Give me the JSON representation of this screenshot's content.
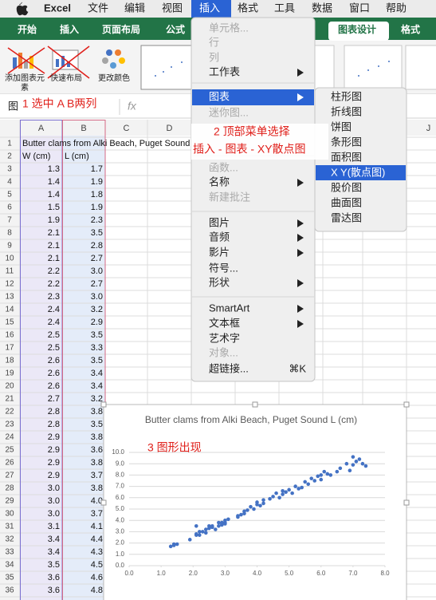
{
  "menubar": {
    "items": [
      {
        "label": "Excel",
        "bold": true
      },
      {
        "label": "文件"
      },
      {
        "label": "编辑"
      },
      {
        "label": "视图"
      },
      {
        "label": "插入",
        "active": true
      },
      {
        "label": "格式"
      },
      {
        "label": "工具"
      },
      {
        "label": "数据"
      },
      {
        "label": "窗口"
      },
      {
        "label": "帮助"
      }
    ]
  },
  "ribbon": {
    "tabs": [
      {
        "label": "开始"
      },
      {
        "label": "插入"
      },
      {
        "label": "页面布局"
      },
      {
        "label": "公式"
      },
      {
        "label": "图表设计",
        "active": true
      },
      {
        "label": "格式"
      }
    ],
    "buttons": [
      "添加图表元素",
      "快速布局",
      "更改颜色"
    ]
  },
  "formula_bar": {
    "name_box": "图",
    "fx": "fx"
  },
  "sheet": {
    "columns": [
      "A",
      "B",
      "C",
      "D",
      "E",
      "F",
      "G",
      "H",
      "I",
      "J"
    ],
    "rows": [
      {
        "num": 1,
        "cells": [
          "Butter clams from Alki Beach, Puget Sound"
        ]
      },
      {
        "num": 2,
        "cells": [
          "W (cm)",
          "L (cm)"
        ]
      },
      {
        "num": 3,
        "cells": [
          "1.3",
          "1.7"
        ]
      },
      {
        "num": 4,
        "cells": [
          "1.4",
          "1.9"
        ]
      },
      {
        "num": 5,
        "cells": [
          "1.4",
          "1.8"
        ]
      },
      {
        "num": 6,
        "cells": [
          "1.5",
          "1.9"
        ]
      },
      {
        "num": 7,
        "cells": [
          "1.9",
          "2.3"
        ]
      },
      {
        "num": 8,
        "cells": [
          "2.1",
          "3.5"
        ]
      },
      {
        "num": 9,
        "cells": [
          "2.1",
          "2.8"
        ]
      },
      {
        "num": 10,
        "cells": [
          "2.1",
          "2.7"
        ]
      },
      {
        "num": 11,
        "cells": [
          "2.2",
          "3.0"
        ]
      },
      {
        "num": 12,
        "cells": [
          "2.2",
          "2.7"
        ]
      },
      {
        "num": 13,
        "cells": [
          "2.3",
          "3.0"
        ]
      },
      {
        "num": 14,
        "cells": [
          "2.4",
          "3.2"
        ]
      },
      {
        "num": 15,
        "cells": [
          "2.4",
          "2.9"
        ]
      },
      {
        "num": 16,
        "cells": [
          "2.5",
          "3.5"
        ]
      },
      {
        "num": 17,
        "cells": [
          "2.5",
          "3.3"
        ]
      },
      {
        "num": 18,
        "cells": [
          "2.6",
          "3.5"
        ]
      },
      {
        "num": 19,
        "cells": [
          "2.6",
          "3.4"
        ]
      },
      {
        "num": 20,
        "cells": [
          "2.6",
          "3.4"
        ]
      },
      {
        "num": 21,
        "cells": [
          "2.7",
          "3.2"
        ]
      },
      {
        "num": 22,
        "cells": [
          "2.8",
          "3.8"
        ]
      },
      {
        "num": 23,
        "cells": [
          "2.8",
          "3.5"
        ]
      },
      {
        "num": 24,
        "cells": [
          "2.9",
          "3.8"
        ]
      },
      {
        "num": 25,
        "cells": [
          "2.9",
          "3.6"
        ]
      },
      {
        "num": 26,
        "cells": [
          "2.9",
          "3.8"
        ]
      },
      {
        "num": 27,
        "cells": [
          "2.9",
          "3.7"
        ]
      },
      {
        "num": 28,
        "cells": [
          "3.0",
          "3.8"
        ]
      },
      {
        "num": 29,
        "cells": [
          "3.0",
          "4.0"
        ]
      },
      {
        "num": 30,
        "cells": [
          "3.0",
          "3.7"
        ]
      },
      {
        "num": 31,
        "cells": [
          "3.1",
          "4.1"
        ]
      },
      {
        "num": 32,
        "cells": [
          "3.4",
          "4.4"
        ]
      },
      {
        "num": 33,
        "cells": [
          "3.4",
          "4.3"
        ]
      },
      {
        "num": 34,
        "cells": [
          "3.5",
          "4.5"
        ]
      },
      {
        "num": 35,
        "cells": [
          "3.6",
          "4.6"
        ]
      },
      {
        "num": 36,
        "cells": [
          "3.6",
          "4.8"
        ]
      }
    ]
  },
  "insert_menu": {
    "items": [
      {
        "label": "单元格...",
        "disabled": true
      },
      {
        "label": "行",
        "disabled": true
      },
      {
        "label": "列",
        "disabled": true
      },
      {
        "label": "工作表",
        "submenu": true
      },
      {
        "label": "图表",
        "submenu": true,
        "highlighted": true
      },
      {
        "label": "迷你图...",
        "disabled": true
      },
      {
        "label": "函数...",
        "disabled": true
      },
      {
        "label": "名称",
        "submenu": true
      },
      {
        "label": "新建批注",
        "disabled": true
      },
      {
        "label": "图片",
        "submenu": true
      },
      {
        "label": "音频",
        "submenu": true
      },
      {
        "label": "影片",
        "submenu": true
      },
      {
        "label": "符号..."
      },
      {
        "label": "形状",
        "submenu": true
      },
      {
        "label": "SmartArt",
        "submenu": true
      },
      {
        "label": "文本框",
        "submenu": true
      },
      {
        "label": "艺术字"
      },
      {
        "label": "对象...",
        "disabled": true
      },
      {
        "label": "超链接...",
        "shortcut": "⌘K"
      }
    ]
  },
  "chart_submenu": {
    "items": [
      {
        "label": "柱形图"
      },
      {
        "label": "折线图"
      },
      {
        "label": "饼图"
      },
      {
        "label": "条形图"
      },
      {
        "label": "面积图"
      },
      {
        "label": "X Y(散点图)",
        "highlighted": true
      },
      {
        "label": "股价图"
      },
      {
        "label": "曲面图"
      },
      {
        "label": "雷达图"
      }
    ]
  },
  "annotations": [
    "1 选中 A B两列",
    "2 顶部菜单选择",
    "插入 - 图表 - XY散点图",
    "3 图形出现"
  ],
  "chart_data": {
    "type": "scatter",
    "title": "Butter clams from Alki Beach, Puget Sound L (cm)",
    "color": "#4472c4",
    "grid": true,
    "x": [
      1.3,
      1.4,
      1.4,
      1.5,
      1.9,
      2.1,
      2.1,
      2.1,
      2.2,
      2.2,
      2.3,
      2.4,
      2.4,
      2.5,
      2.5,
      2.6,
      2.6,
      2.6,
      2.7,
      2.8,
      2.8,
      2.9,
      2.9,
      2.9,
      2.9,
      3.0,
      3.0,
      3.0,
      3.1,
      3.4,
      3.4,
      3.5,
      3.6,
      3.6,
      3.7,
      3.8,
      3.9,
      4.0,
      4.0,
      4.1,
      4.2,
      4.2,
      4.4,
      4.5,
      4.6,
      4.7,
      4.8,
      4.8,
      4.9,
      5.0,
      5.1,
      5.2,
      5.3,
      5.4,
      5.5,
      5.6,
      5.7,
      5.8,
      5.9,
      6.0,
      6.0,
      6.1,
      6.2,
      6.3,
      6.5,
      6.6,
      6.8,
      6.9,
      7.0,
      7.0,
      7.1,
      7.2,
      7.3,
      7.4
    ],
    "values": [
      1.7,
      1.9,
      1.8,
      1.9,
      2.3,
      3.5,
      2.8,
      2.7,
      3.0,
      2.7,
      3.0,
      3.2,
      2.9,
      3.5,
      3.3,
      3.5,
      3.4,
      3.4,
      3.2,
      3.8,
      3.5,
      3.8,
      3.6,
      3.8,
      3.7,
      3.8,
      4.0,
      3.7,
      4.1,
      4.4,
      4.3,
      4.5,
      4.6,
      4.8,
      4.9,
      5.2,
      5.0,
      5.4,
      5.6,
      5.3,
      5.5,
      5.8,
      5.9,
      6.1,
      6.4,
      6.0,
      6.3,
      6.6,
      6.5,
      6.7,
      6.4,
      7.0,
      6.8,
      6.9,
      7.4,
      7.2,
      7.7,
      7.5,
      7.9,
      8.0,
      7.6,
      8.3,
      8.1,
      8.0,
      8.3,
      8.6,
      9.0,
      8.4,
      9.6,
      8.9,
      9.2,
      9.4,
      9.0,
      8.8
    ],
    "xlim": [
      0,
      8
    ],
    "xticks": [
      {
        "value": 0,
        "label": "0.0"
      },
      {
        "value": 1,
        "label": "1.0"
      },
      {
        "value": 2,
        "label": "2.0"
      },
      {
        "value": 3,
        "label": "3.0"
      },
      {
        "value": 4,
        "label": "4.0"
      },
      {
        "value": 5,
        "label": "5.0"
      },
      {
        "value": 6,
        "label": "6.0"
      },
      {
        "value": 7,
        "label": "7.0"
      },
      {
        "value": 8,
        "label": "8.0"
      }
    ],
    "ylim": [
      0,
      10
    ],
    "yticks": [
      {
        "value": 0,
        "label": "0.0"
      },
      {
        "value": 1,
        "label": "1.0"
      },
      {
        "value": 2,
        "label": "2.0"
      },
      {
        "value": 3,
        "label": "3.0"
      },
      {
        "value": 4,
        "label": "4.0"
      },
      {
        "value": 5,
        "label": "5.0"
      },
      {
        "value": 6,
        "label": "6.0"
      },
      {
        "value": 7,
        "label": "7.0"
      },
      {
        "value": 8,
        "label": "8.0"
      },
      {
        "value": 9,
        "label": "9.0"
      },
      {
        "value": 10,
        "label": "10.0"
      }
    ]
  }
}
